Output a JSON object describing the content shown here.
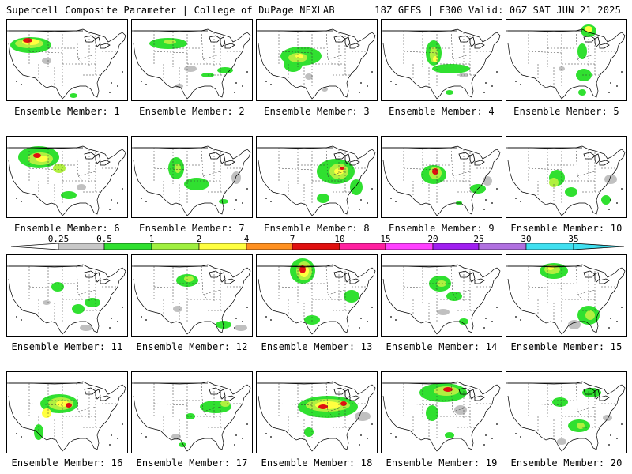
{
  "header": {
    "left": "Supercell Composite Parameter | College of DuPage NEXLAB",
    "right": "18Z GEFS | F300 Valid: 06Z SAT JUN 21 2025"
  },
  "caption_prefix": "Ensemble Member:",
  "members": [
    {
      "label": "Ensemble Member: 1",
      "blobs": [
        [
          30,
          32,
          26,
          10,
          "#30e030"
        ],
        [
          28,
          30,
          18,
          6,
          "#b0f040"
        ],
        [
          30,
          28,
          11,
          4,
          "#ffff40"
        ],
        [
          26,
          26,
          6,
          3,
          "#e01010"
        ],
        [
          50,
          52,
          6,
          4,
          "#c0c0c0"
        ],
        [
          84,
          96,
          5,
          3,
          "#30e030"
        ]
      ]
    },
    {
      "label": "Ensemble Member: 2",
      "blobs": [
        [
          46,
          30,
          24,
          7,
          "#30e030"
        ],
        [
          48,
          28,
          8,
          3,
          "#b0f040"
        ],
        [
          74,
          62,
          8,
          4,
          "#c0c0c0"
        ],
        [
          118,
          64,
          10,
          4,
          "#30e030"
        ],
        [
          96,
          70,
          8,
          3,
          "#30e030"
        ],
        [
          60,
          84,
          5,
          3,
          "#c0c0c0"
        ]
      ]
    },
    {
      "label": "Ensemble Member: 3",
      "blobs": [
        [
          56,
          46,
          26,
          12,
          "#30e030"
        ],
        [
          46,
          56,
          12,
          10,
          "#30e030"
        ],
        [
          52,
          48,
          12,
          6,
          "#b0f040"
        ],
        [
          54,
          46,
          5,
          3,
          "#ffff40"
        ],
        [
          66,
          72,
          5,
          4,
          "#c0c0c0"
        ],
        [
          86,
          88,
          4,
          3,
          "#c0c0c0"
        ]
      ]
    },
    {
      "label": "Ensemble Member: 4",
      "blobs": [
        [
          66,
          42,
          10,
          16,
          "#30e030"
        ],
        [
          88,
          62,
          24,
          6,
          "#30e030"
        ],
        [
          66,
          44,
          5,
          10,
          "#b0f040"
        ],
        [
          68,
          50,
          3,
          4,
          "#ffff40"
        ],
        [
          104,
          70,
          6,
          3,
          "#c0c0c0"
        ],
        [
          86,
          92,
          5,
          3,
          "#30e030"
        ]
      ]
    },
    {
      "label": "Ensemble Member: 5",
      "blobs": [
        [
          104,
          14,
          10,
          8,
          "#30e030"
        ],
        [
          104,
          12,
          5,
          4,
          "#ffff40"
        ],
        [
          96,
          40,
          6,
          10,
          "#30e030"
        ],
        [
          98,
          70,
          10,
          8,
          "#30e030"
        ],
        [
          96,
          92,
          5,
          4,
          "#30e030"
        ],
        [
          70,
          62,
          4,
          3,
          "#c0c0c0"
        ]
      ]
    },
    {
      "label": "Ensemble Member: 6",
      "blobs": [
        [
          40,
          26,
          26,
          14,
          "#30e030"
        ],
        [
          42,
          28,
          16,
          8,
          "#b0f040"
        ],
        [
          44,
          28,
          8,
          4,
          "#ffff40"
        ],
        [
          38,
          24,
          5,
          3,
          "#e01010"
        ],
        [
          66,
          40,
          8,
          6,
          "#b0f040"
        ],
        [
          78,
          74,
          10,
          5,
          "#30e030"
        ],
        [
          94,
          64,
          6,
          4,
          "#c0c0c0"
        ]
      ]
    },
    {
      "label": "Ensemble Member: 7",
      "blobs": [
        [
          56,
          40,
          10,
          14,
          "#30e030"
        ],
        [
          58,
          40,
          4,
          6,
          "#b0f040"
        ],
        [
          82,
          60,
          16,
          8,
          "#30e030"
        ],
        [
          132,
          52,
          6,
          8,
          "#c0c0c0"
        ],
        [
          116,
          82,
          6,
          3,
          "#30e030"
        ]
      ]
    },
    {
      "label": "Ensemble Member: 8",
      "blobs": [
        [
          100,
          44,
          24,
          16,
          "#30e030"
        ],
        [
          104,
          44,
          12,
          10,
          "#b0f040"
        ],
        [
          104,
          44,
          6,
          4,
          "#ffff40"
        ],
        [
          108,
          40,
          3,
          2,
          "#e01010"
        ],
        [
          84,
          78,
          8,
          6,
          "#30e030"
        ],
        [
          126,
          64,
          8,
          10,
          "#30e030"
        ]
      ]
    },
    {
      "label": "Ensemble Member: 9",
      "blobs": [
        [
          66,
          48,
          16,
          12,
          "#30e030"
        ],
        [
          68,
          46,
          8,
          8,
          "#b0f040"
        ],
        [
          68,
          44,
          4,
          4,
          "#e01010"
        ],
        [
          122,
          66,
          10,
          6,
          "#30e030"
        ],
        [
          134,
          56,
          6,
          6,
          "#c0c0c0"
        ],
        [
          98,
          84,
          4,
          3,
          "#30e030"
        ]
      ]
    },
    {
      "label": "Ensemble Member: 10",
      "blobs": [
        [
          64,
          52,
          10,
          10,
          "#30e030"
        ],
        [
          60,
          58,
          6,
          6,
          "#b0f040"
        ],
        [
          82,
          70,
          8,
          6,
          "#30e030"
        ],
        [
          132,
          54,
          8,
          6,
          "#c0c0c0"
        ],
        [
          126,
          80,
          6,
          6,
          "#30e030"
        ]
      ]
    },
    {
      "label": "Ensemble Member: 11",
      "blobs": [
        [
          64,
          40,
          8,
          6,
          "#30e030"
        ],
        [
          90,
          68,
          8,
          6,
          "#30e030"
        ],
        [
          108,
          60,
          10,
          6,
          "#30e030"
        ],
        [
          100,
          92,
          8,
          4,
          "#c0c0c0"
        ],
        [
          50,
          60,
          5,
          3,
          "#c0c0c0"
        ]
      ]
    },
    {
      "label": "Ensemble Member: 12",
      "blobs": [
        [
          70,
          32,
          14,
          8,
          "#30e030"
        ],
        [
          72,
          30,
          6,
          4,
          "#b0f040"
        ],
        [
          58,
          68,
          6,
          4,
          "#c0c0c0"
        ],
        [
          116,
          88,
          10,
          5,
          "#30e030"
        ],
        [
          138,
          92,
          8,
          4,
          "#c0c0c0"
        ]
      ]
    },
    {
      "label": "Ensemble Member: 13",
      "blobs": [
        [
          58,
          20,
          16,
          16,
          "#30e030"
        ],
        [
          60,
          20,
          10,
          12,
          "#b0f040"
        ],
        [
          60,
          20,
          6,
          8,
          "#ffff40"
        ],
        [
          58,
          18,
          4,
          5,
          "#e01010"
        ],
        [
          120,
          52,
          10,
          8,
          "#30e030"
        ],
        [
          70,
          82,
          10,
          6,
          "#30e030"
        ]
      ]
    },
    {
      "label": "Ensemble Member: 14",
      "blobs": [
        [
          74,
          36,
          14,
          10,
          "#30e030"
        ],
        [
          76,
          36,
          6,
          4,
          "#b0f040"
        ],
        [
          92,
          52,
          10,
          6,
          "#30e030"
        ],
        [
          78,
          72,
          8,
          4,
          "#c0c0c0"
        ],
        [
          104,
          84,
          6,
          4,
          "#30e030"
        ]
      ]
    },
    {
      "label": "Ensemble Member: 15",
      "blobs": [
        [
          60,
          20,
          18,
          10,
          "#30e030"
        ],
        [
          58,
          18,
          10,
          6,
          "#b0f040"
        ],
        [
          56,
          16,
          4,
          3,
          "#ffff40"
        ],
        [
          104,
          76,
          14,
          12,
          "#30e030"
        ],
        [
          106,
          76,
          6,
          6,
          "#b0f040"
        ],
        [
          86,
          88,
          8,
          6,
          "#c0c0c0"
        ]
      ]
    },
    {
      "label": "Ensemble Member: 16",
      "blobs": [
        [
          66,
          40,
          24,
          12,
          "#30e030"
        ],
        [
          68,
          40,
          16,
          8,
          "#b0f040"
        ],
        [
          70,
          40,
          8,
          4,
          "#ffff40"
        ],
        [
          78,
          42,
          4,
          3,
          "#e01010"
        ],
        [
          50,
          52,
          6,
          6,
          "#ffff40"
        ],
        [
          40,
          76,
          6,
          10,
          "#30e030"
        ]
      ]
    },
    {
      "label": "Ensemble Member: 17",
      "blobs": [
        [
          106,
          44,
          20,
          8,
          "#30e030"
        ],
        [
          118,
          40,
          6,
          4,
          "#b0f040"
        ],
        [
          74,
          56,
          6,
          4,
          "#30e030"
        ],
        [
          56,
          82,
          6,
          4,
          "#c0c0c0"
        ],
        [
          64,
          92,
          5,
          3,
          "#30e030"
        ]
      ]
    },
    {
      "label": "Ensemble Member: 18",
      "blobs": [
        [
          90,
          44,
          38,
          14,
          "#30e030"
        ],
        [
          90,
          42,
          28,
          8,
          "#b0f040"
        ],
        [
          90,
          42,
          16,
          5,
          "#ffff40"
        ],
        [
          84,
          44,
          6,
          3,
          "#e01010"
        ],
        [
          110,
          40,
          4,
          3,
          "#e01010"
        ],
        [
          134,
          56,
          10,
          6,
          "#c0c0c0"
        ],
        [
          66,
          76,
          6,
          6,
          "#30e030"
        ]
      ]
    },
    {
      "label": "Ensemble Member: 19",
      "blobs": [
        [
          78,
          26,
          30,
          12,
          "#30e030"
        ],
        [
          82,
          24,
          16,
          6,
          "#b0f040"
        ],
        [
          84,
          22,
          6,
          3,
          "#e01010"
        ],
        [
          64,
          52,
          8,
          10,
          "#30e030"
        ],
        [
          100,
          48,
          8,
          6,
          "#c0c0c0"
        ],
        [
          86,
          80,
          6,
          4,
          "#30e030"
        ]
      ]
    },
    {
      "label": "Ensemble Member: 20",
      "blobs": [
        [
          68,
          38,
          10,
          6,
          "#30e030"
        ],
        [
          108,
          26,
          12,
          6,
          "#30e030"
        ],
        [
          92,
          68,
          14,
          8,
          "#30e030"
        ],
        [
          94,
          68,
          5,
          4,
          "#b0f040"
        ],
        [
          70,
          88,
          6,
          4,
          "#c0c0c0"
        ],
        [
          128,
          58,
          6,
          4,
          "#c0c0c0"
        ]
      ]
    }
  ],
  "legend": {
    "labels": [
      "0.25",
      "0.5",
      "1",
      "2",
      "4",
      "7",
      "10",
      "15",
      "20",
      "25",
      "30",
      "35"
    ],
    "colors": [
      "#ffffff",
      "#c8c8c8",
      "#30e030",
      "#a0f040",
      "#ffff40",
      "#ff9020",
      "#e01010",
      "#ff20a0",
      "#ff40ff",
      "#a020f0",
      "#b070e0",
      "#40e0f0"
    ]
  },
  "colors": {
    "boundary": "#000000",
    "state_lines": "#333333"
  }
}
